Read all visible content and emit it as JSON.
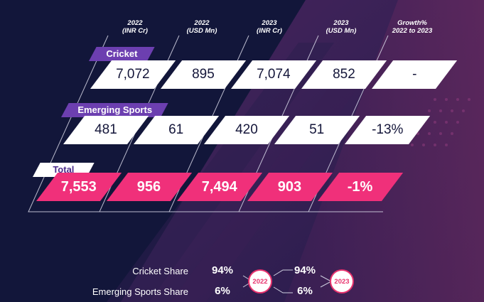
{
  "chart_data": {
    "type": "table",
    "headers": [
      {
        "line1": "2022",
        "line2": "(INR Cr)"
      },
      {
        "line1": "2022",
        "line2": "(USD Mn)"
      },
      {
        "line1": "2023",
        "line2": "(INR Cr)"
      },
      {
        "line1": "2023",
        "line2": "(USD Mn)"
      },
      {
        "line1": "Growth%",
        "line2": "2022 to 2023"
      }
    ],
    "rows": [
      {
        "label": "Cricket",
        "values": [
          "7,072",
          "895",
          "7,074",
          "852",
          "-"
        ]
      },
      {
        "label": "Emerging Sports",
        "values": [
          "481",
          "61",
          "420",
          "51",
          "-13%"
        ]
      },
      {
        "label": "Total",
        "values": [
          "7,553",
          "956",
          "7,494",
          "903",
          "-1%"
        ]
      }
    ]
  },
  "shares": {
    "labels": [
      "Cricket Share",
      "Emerging Sports Share"
    ],
    "y2022": [
      "94%",
      "6%"
    ],
    "y2023": [
      "94%",
      "6%"
    ],
    "badge_2022": "2022",
    "badge_2023": "2023"
  },
  "colors": {
    "background": "#13163a",
    "accent_pink": "#f0307a",
    "accent_purple": "#6c3fb0",
    "cell_white": "#ffffff"
  }
}
